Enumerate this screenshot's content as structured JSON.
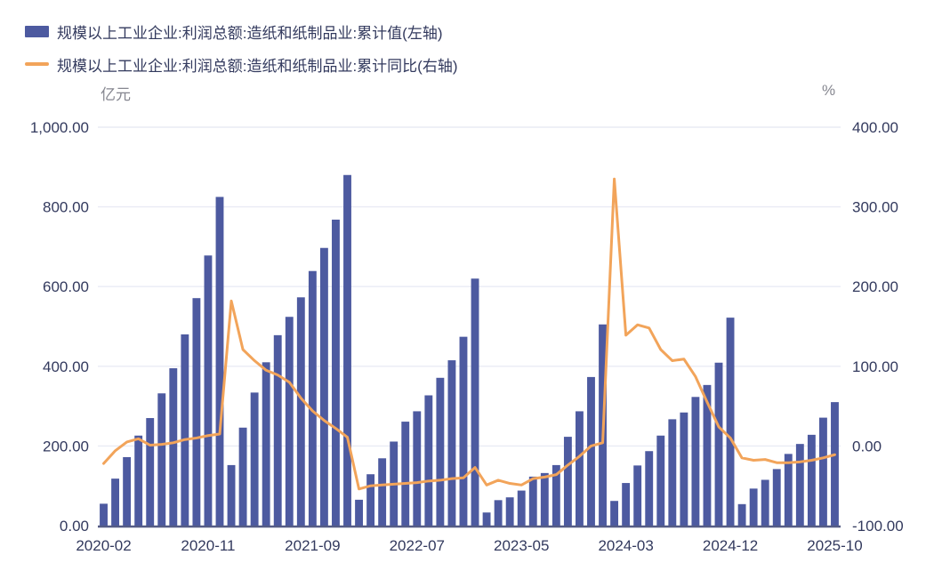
{
  "legend": {
    "items": [
      {
        "label": "规模以上工业企业:利润总额:造纸和纸制品业:累计值(左轴)",
        "type": "bar",
        "color": "#4D5AA0"
      },
      {
        "label": "规模以上工业企业:利润总额:造纸和纸制品业:累计同比(右轴)",
        "type": "line",
        "color": "#F2A45A"
      }
    ]
  },
  "axes": {
    "left": {
      "unit": "亿元",
      "ticks": [
        "1,000.00",
        "800.00",
        "600.00",
        "400.00",
        "200.00",
        "0.00"
      ]
    },
    "right": {
      "unit": "%",
      "ticks": [
        "400.00",
        "300.00",
        "200.00",
        "100.00",
        "0.00",
        "-100.00"
      ]
    },
    "x": {
      "tick_labels": [
        "2020-02",
        "2020-11",
        "2021-09",
        "2022-07",
        "2023-05",
        "2024-03",
        "2024-12",
        "2025-10"
      ],
      "tick_indices": [
        0,
        9,
        18,
        27,
        36,
        45,
        54,
        63
      ]
    }
  },
  "colors": {
    "bar": "#4D5AA0",
    "line": "#F2A45A",
    "tick_text": "#333A5E",
    "unit_text": "#85868F",
    "gridline": "#E9EBF4",
    "axis_line": "#555C85"
  },
  "chart_data": {
    "type": "bar",
    "subtype": "dual-axis bar+line combo",
    "x": [
      "2020-02",
      "2020-03",
      "2020-04",
      "2020-05",
      "2020-06",
      "2020-07",
      "2020-08",
      "2020-09",
      "2020-10",
      "2020-11",
      "2020-12",
      "2021-02",
      "2021-03",
      "2021-04",
      "2021-05",
      "2021-06",
      "2021-07",
      "2021-08",
      "2021-09",
      "2021-10",
      "2021-11",
      "2021-12",
      "2022-02",
      "2022-03",
      "2022-04",
      "2022-05",
      "2022-06",
      "2022-07",
      "2022-08",
      "2022-09",
      "2022-10",
      "2022-11",
      "2022-12",
      "2023-02",
      "2023-03",
      "2023-04",
      "2023-05",
      "2023-06",
      "2023-07",
      "2023-08",
      "2023-09",
      "2023-10",
      "2023-11",
      "2023-12",
      "2024-02",
      "2024-03",
      "2024-04",
      "2024-05",
      "2024-06",
      "2024-07",
      "2024-08",
      "2024-09",
      "2024-10",
      "2024-11",
      "2024-12",
      "2025-02",
      "2025-03",
      "2025-04",
      "2025-05",
      "2025-06",
      "2025-07",
      "2025-08",
      "2025-09",
      "2025-10"
    ],
    "series": [
      {
        "name": "规模以上工业企业:利润总额:造纸和纸制品业:累计值(左轴)",
        "type": "bar",
        "axis": "left",
        "unit": "亿元",
        "color": "#4D5AA0",
        "values": [
          55,
          118,
          172,
          226,
          270,
          332,
          395,
          480,
          571,
          678,
          825,
          152,
          246,
          334,
          410,
          478,
          524,
          573,
          639,
          697,
          768,
          880,
          65,
          129,
          169,
          211,
          261,
          287,
          327,
          371,
          415,
          474,
          620,
          33,
          64,
          71,
          88,
          123,
          132,
          152,
          223,
          287,
          373,
          505,
          62,
          107,
          151,
          187,
          226,
          267,
          284,
          323,
          353,
          409,
          522,
          54,
          93,
          115,
          142,
          180,
          205,
          228,
          271,
          310
        ]
      },
      {
        "name": "规模以上工业企业:利润总额:造纸和纸制品业:累计同比(右轴)",
        "type": "line",
        "axis": "right",
        "unit": "%",
        "color": "#F2A45A",
        "values": [
          -22,
          -6,
          5,
          9,
          1,
          2,
          4,
          8,
          10,
          13,
          15,
          182,
          121,
          107,
          95,
          89,
          80,
          60,
          44,
          32,
          22,
          11,
          -54,
          -50,
          -49,
          -48,
          -47,
          -46,
          -44,
          -43,
          -41,
          -40,
          -27,
          -49,
          -43,
          -47,
          -49,
          -41,
          -39,
          -36,
          -24,
          -13,
          0,
          4,
          335,
          139,
          152,
          148,
          121,
          107,
          109,
          87,
          55,
          24,
          10,
          -15,
          -18,
          -17,
          -21,
          -21,
          -20,
          -18,
          -15,
          -11
        ]
      }
    ],
    "left_ylim": [
      0,
      1000
    ],
    "right_ylim": [
      -100,
      400
    ],
    "grid": true,
    "legend_position": "top-left"
  }
}
